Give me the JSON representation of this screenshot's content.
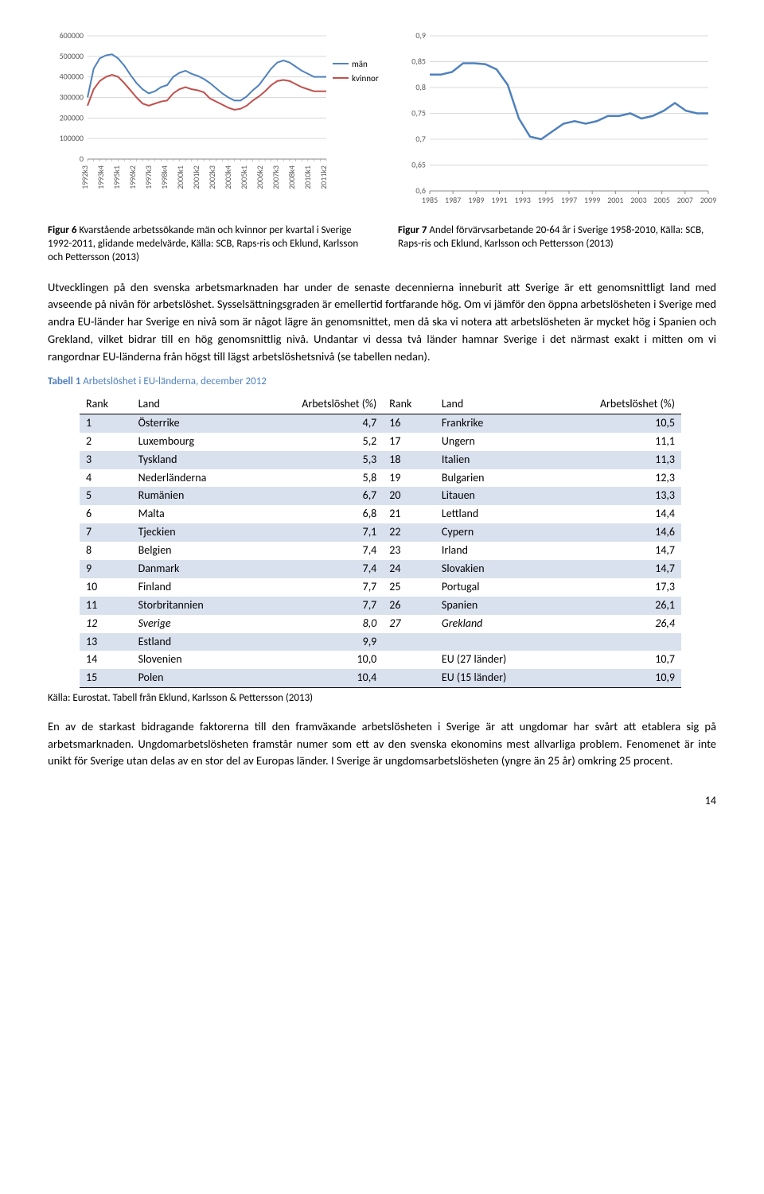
{
  "chart1": {
    "type": "line",
    "y_ticks": [
      0,
      100000,
      200000,
      300000,
      400000,
      500000,
      600000
    ],
    "y_labels": [
      "0",
      "100000",
      "200000",
      "300000",
      "400000",
      "500000",
      "600000"
    ],
    "ylim": [
      0,
      600000
    ],
    "x_ticks_every_other": [
      "1992k3",
      "1993k4",
      "1995k1",
      "1996k2",
      "1997k3",
      "1998k4",
      "2000k1",
      "2001k2",
      "2002k3",
      "2003k4",
      "2005k1",
      "2006k2",
      "2007k3",
      "2008k4",
      "2010k1",
      "2011k2"
    ],
    "series": [
      {
        "name": "män",
        "color": "#4f81bd",
        "values": [
          300000,
          440000,
          490000,
          505000,
          510000,
          490000,
          455000,
          410000,
          370000,
          340000,
          320000,
          330000,
          350000,
          360000,
          400000,
          420000,
          430000,
          415000,
          405000,
          390000,
          370000,
          345000,
          320000,
          300000,
          285000,
          285000,
          305000,
          335000,
          360000,
          400000,
          440000,
          470000,
          480000,
          470000,
          450000,
          430000,
          415000,
          400000,
          400000,
          400000
        ]
      },
      {
        "name": "kvinnor",
        "color": "#c0504d",
        "values": [
          260000,
          340000,
          380000,
          400000,
          410000,
          400000,
          370000,
          335000,
          300000,
          270000,
          260000,
          270000,
          280000,
          285000,
          320000,
          340000,
          350000,
          340000,
          335000,
          325000,
          295000,
          280000,
          265000,
          250000,
          240000,
          245000,
          260000,
          285000,
          305000,
          330000,
          360000,
          380000,
          385000,
          380000,
          365000,
          350000,
          340000,
          330000,
          330000,
          330000
        ]
      }
    ],
    "legend": [
      "män",
      "kvinnor"
    ],
    "background": "#ffffff",
    "grid_color": "#d9d9d9",
    "axis_fontsize": 10
  },
  "chart2": {
    "type": "line",
    "ylim": [
      0.6,
      0.9
    ],
    "y_ticks": [
      0.6,
      0.65,
      0.7,
      0.75,
      0.8,
      0.85,
      0.9
    ],
    "y_labels": [
      "0,6",
      "0,65",
      "0,7",
      "0,75",
      "0,8",
      "0,85",
      "0,9"
    ],
    "x_years": [
      1985,
      1987,
      1989,
      1991,
      1993,
      1995,
      1997,
      1999,
      2001,
      2003,
      2005,
      2007,
      2009
    ],
    "series_color": "#4f81bd",
    "values": [
      0.825,
      0.825,
      0.83,
      0.847,
      0.847,
      0.845,
      0.835,
      0.805,
      0.74,
      0.705,
      0.7,
      0.715,
      0.73,
      0.735,
      0.73,
      0.735,
      0.745,
      0.745,
      0.75,
      0.74,
      0.745,
      0.755,
      0.77,
      0.755,
      0.75,
      0.75
    ],
    "background": "#ffffff",
    "grid_color": "#d9d9d9",
    "axis_fontsize": 10
  },
  "captions": {
    "c1_bold": "Figur 6",
    "c1_rest": " Kvarstående arbetssökande män och kvinnor per kvartal i Sverige 1992-2011, glidande medelvärde, Källa: SCB, Raps-ris och Eklund, Karlsson och Pettersson (2013)",
    "c2_bold": "Figur 7",
    "c2_rest": " Andel förvärvsarbetande 20-64 år i Sverige 1958-2010, Källa: SCB, Raps-ris och Eklund, Karlsson och Pettersson (2013)"
  },
  "para1": "Utvecklingen på den svenska arbetsmarknaden har under de senaste decennierna inneburit att Sverige är ett genomsnittligt land med avseende på nivån för arbetslöshet. Sysselsättningsgraden är emellertid fortfarande hög. Om vi jämför den öppna arbetslösheten i Sverige med andra EU-länder har Sverige en nivå som är något lägre än genomsnittet, men då ska vi notera att arbetslösheten är mycket hög i Spanien och Grekland, vilket bidrar till en hög genomsnittlig nivå. Undantar vi dessa två länder hamnar Sverige i det närmast exakt i mitten om vi rangordnar EU-länderna från högst till lägst arbetslöshetsnivå (se tabellen nedan).",
  "table_title_bold": "Tabell 1",
  "table_title_rest": " Arbetslöshet i EU-länderna, december 2012",
  "table": {
    "headers": [
      "Rank",
      "Land",
      "Arbetslöshet (%)",
      "Rank",
      "Land",
      "Arbetslöshet (%)"
    ],
    "rows": [
      {
        "shaded": true,
        "c": [
          "1",
          "Österrike",
          "4,7",
          "16",
          "Frankrike",
          "10,5"
        ]
      },
      {
        "shaded": false,
        "c": [
          "2",
          "Luxembourg",
          "5,2",
          "17",
          "Ungern",
          "11,1"
        ]
      },
      {
        "shaded": true,
        "c": [
          "3",
          "Tyskland",
          "5,3",
          "18",
          "Italien",
          "11,3"
        ]
      },
      {
        "shaded": false,
        "c": [
          "4",
          "Nederländerna",
          "5,8",
          "19",
          "Bulgarien",
          "12,3"
        ]
      },
      {
        "shaded": true,
        "c": [
          "5",
          "Rumänien",
          "6,7",
          "20",
          "Litauen",
          "13,3"
        ]
      },
      {
        "shaded": false,
        "c": [
          "6",
          "Malta",
          "6,8",
          "21",
          "Lettland",
          "14,4"
        ]
      },
      {
        "shaded": true,
        "c": [
          "7",
          "Tjeckien",
          "7,1",
          "22",
          "Cypern",
          "14,6"
        ]
      },
      {
        "shaded": false,
        "c": [
          "8",
          "Belgien",
          "7,4",
          "23",
          "Irland",
          "14,7"
        ]
      },
      {
        "shaded": true,
        "c": [
          "9",
          "Danmark",
          "7,4",
          "24",
          "Slovakien",
          "14,7"
        ]
      },
      {
        "shaded": false,
        "c": [
          "10",
          "Finland",
          "7,7",
          "25",
          "Portugal",
          "17,3"
        ]
      },
      {
        "shaded": true,
        "c": [
          "11",
          "Storbritannien",
          "7,7",
          "26",
          "Spanien",
          "26,1"
        ]
      },
      {
        "shaded": false,
        "italic": true,
        "c": [
          "12",
          "Sverige",
          "8,0",
          "27",
          "Grekland",
          "26,4"
        ]
      },
      {
        "shaded": true,
        "c": [
          "13",
          "Estland",
          "9,9",
          "",
          "",
          ""
        ]
      },
      {
        "shaded": false,
        "c": [
          "14",
          "Slovenien",
          "10,0",
          "",
          "EU (27 länder)",
          "10,7"
        ]
      },
      {
        "shaded": true,
        "c": [
          "15",
          "Polen",
          "10,4",
          "",
          "EU (15 länder)",
          "10,9"
        ]
      }
    ]
  },
  "table_source": "Källa: Eurostat. Tabell från Eklund, Karlsson & Pettersson (2013)",
  "para2": "En av de starkast bidragande faktorerna till den framväxande arbetslösheten i Sverige är att ungdomar har svårt att etablera sig på arbetsmarknaden. Ungdomarbetslösheten framstår numer som ett av den svenska ekonomins mest allvarliga problem. Fenomenet är inte unikt för Sverige utan delas av en stor del av Europas länder. I Sverige är ungdomsarbetslösheten (yngre än 25 år) omkring 25 procent.",
  "page_number": "14"
}
